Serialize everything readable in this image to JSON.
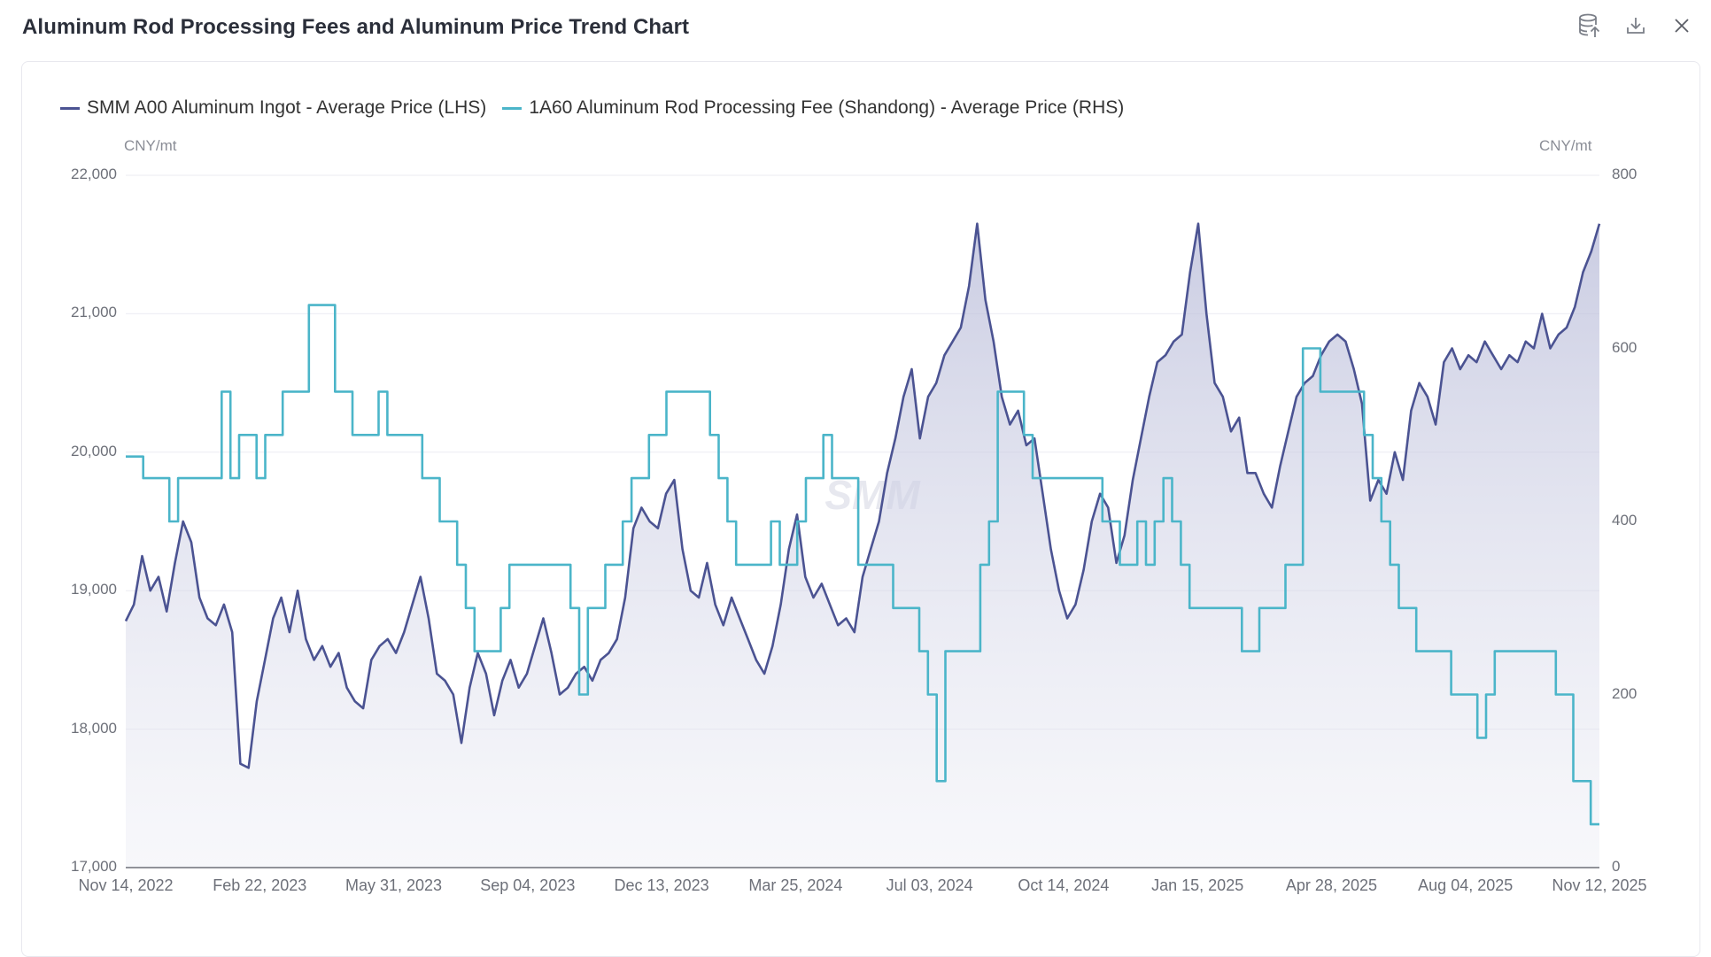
{
  "header": {
    "title": "Aluminum Rod Processing Fees and Aluminum Price Trend Chart",
    "icons": [
      "database-export-icon",
      "download-icon",
      "close-icon"
    ]
  },
  "watermark": "SMM",
  "chart_data": {
    "type": "line",
    "title": "Aluminum Rod Processing Fees and Aluminum Price Trend Chart",
    "x_start": "Nov 14, 2022",
    "x_end": "Nov 12, 2025",
    "x_ticks": [
      "Nov 14, 2022",
      "Feb 22, 2023",
      "May 31, 2023",
      "Sep 04, 2023",
      "Dec 13, 2023",
      "Mar 25, 2024",
      "Jul 03, 2024",
      "Oct 14, 2024",
      "Jan 15, 2025",
      "Apr 28, 2025",
      "Aug 04, 2025",
      "Nov 12, 2025"
    ],
    "y_left": {
      "unit": "CNY/mt",
      "range": [
        17000,
        22000
      ],
      "ticks": [
        "17,000",
        "18,000",
        "19,000",
        "20,000",
        "21,000",
        "22,000"
      ],
      "tick_values": [
        17000,
        18000,
        19000,
        20000,
        21000,
        22000
      ]
    },
    "y_right": {
      "unit": "CNY/mt",
      "range": [
        0,
        800
      ],
      "ticks": [
        "0",
        "200",
        "400",
        "600",
        "800"
      ],
      "tick_values": [
        0,
        200,
        400,
        600,
        800
      ]
    },
    "grid": true,
    "legend_position": "top-left",
    "series": [
      {
        "name": "SMM A00 Aluminum Ingot - Average Price (LHS)",
        "axis": "left",
        "color": "#4b5392",
        "fill": true,
        "values": [
          18780,
          18900,
          19250,
          19000,
          19100,
          18850,
          19200,
          19500,
          19350,
          18950,
          18800,
          18750,
          18900,
          18700,
          17750,
          17720,
          18200,
          18500,
          18800,
          18950,
          18700,
          19000,
          18650,
          18500,
          18600,
          18450,
          18550,
          18300,
          18200,
          18150,
          18500,
          18600,
          18650,
          18550,
          18700,
          18900,
          19100,
          18800,
          18400,
          18350,
          18250,
          17900,
          18300,
          18550,
          18400,
          18100,
          18350,
          18500,
          18300,
          18400,
          18600,
          18800,
          18550,
          18250,
          18300,
          18400,
          18450,
          18350,
          18500,
          18550,
          18650,
          18950,
          19450,
          19600,
          19500,
          19450,
          19700,
          19800,
          19300,
          19000,
          18950,
          19200,
          18900,
          18750,
          18950,
          18800,
          18650,
          18500,
          18400,
          18600,
          18900,
          19300,
          19550,
          19100,
          18950,
          19050,
          18900,
          18750,
          18800,
          18700,
          19100,
          19300,
          19500,
          19850,
          20100,
          20400,
          20600,
          20100,
          20400,
          20500,
          20700,
          20800,
          20900,
          21200,
          21650,
          21100,
          20800,
          20400,
          20200,
          20300,
          20050,
          20100,
          19700,
          19300,
          19000,
          18800,
          18900,
          19150,
          19500,
          19700,
          19600,
          19200,
          19400,
          19800,
          20100,
          20400,
          20650,
          20700,
          20800,
          20850,
          21300,
          21650,
          21000,
          20500,
          20400,
          20150,
          20250,
          19850,
          19850,
          19700,
          19600,
          19900,
          20150,
          20400,
          20500,
          20550,
          20700,
          20800,
          20850,
          20800,
          20600,
          20350,
          19650,
          19800,
          19700,
          20000,
          19800,
          20300,
          20500,
          20400,
          20200,
          20650,
          20750,
          20600,
          20700,
          20650,
          20800,
          20700,
          20600,
          20700,
          20650,
          20800,
          20750,
          21000,
          20750,
          20850,
          20900,
          21050,
          21300,
          21450,
          21650
        ]
      },
      {
        "name": "1A60 Aluminum Rod Processing Fee (Shandong) - Average Price (RHS)",
        "axis": "right",
        "color": "#4bb5c9",
        "fill": false,
        "step": true,
        "values": [
          475,
          475,
          450,
          450,
          450,
          400,
          450,
          450,
          450,
          450,
          450,
          550,
          450,
          500,
          500,
          450,
          500,
          500,
          550,
          550,
          550,
          650,
          650,
          650,
          550,
          550,
          500,
          500,
          500,
          550,
          500,
          500,
          500,
          500,
          450,
          450,
          400,
          400,
          350,
          300,
          250,
          250,
          250,
          300,
          350,
          350,
          350,
          350,
          350,
          350,
          350,
          300,
          200,
          300,
          300,
          350,
          350,
          400,
          450,
          450,
          500,
          500,
          550,
          550,
          550,
          550,
          550,
          500,
          450,
          400,
          350,
          350,
          350,
          350,
          400,
          350,
          350,
          400,
          450,
          450,
          500,
          450,
          450,
          450,
          350,
          350,
          350,
          350,
          300,
          300,
          300,
          250,
          200,
          100,
          250,
          250,
          250,
          250,
          350,
          400,
          550,
          550,
          550,
          500,
          450,
          450,
          450,
          450,
          450,
          450,
          450,
          450,
          400,
          400,
          350,
          350,
          400,
          350,
          400,
          450,
          400,
          350,
          300,
          300,
          300,
          300,
          300,
          300,
          250,
          250,
          300,
          300,
          300,
          350,
          350,
          600,
          600,
          550,
          550,
          550,
          550,
          550,
          500,
          450,
          400,
          350,
          300,
          300,
          250,
          250,
          250,
          250,
          200,
          200,
          200,
          150,
          200,
          250,
          250,
          250,
          250,
          250,
          250,
          250,
          200,
          200,
          100,
          100,
          50,
          50
        ]
      }
    ]
  },
  "legend": [
    {
      "label": "SMM A00 Aluminum Ingot - Average Price (LHS)",
      "color": "#4b5392"
    },
    {
      "label": "1A60 Aluminum Rod Processing Fee (Shandong) - Average Price (RHS)",
      "color": "#4bb5c9"
    }
  ],
  "axes": {
    "left_unit": "CNY/mt",
    "right_unit": "CNY/mt"
  }
}
